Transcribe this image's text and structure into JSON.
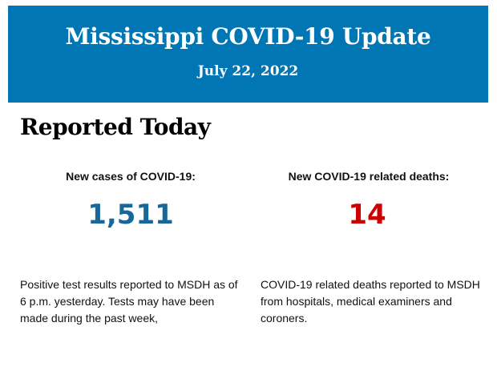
{
  "header": {
    "title": "Mississippi COVID-19 Update",
    "date": "July 22, 2022",
    "background_color": "#0076b4"
  },
  "section_title": "Reported Today",
  "stats": [
    {
      "label": "New cases of COVID-19:",
      "value": "1,511",
      "color": "#176899",
      "description": "Positive test results reported to MSDH as of 6 p.m. yesterday. Tests may have been made during the past week,"
    },
    {
      "label": "New COVID-19 related deaths:",
      "value": "14",
      "color": "#cc0000",
      "description": "COVID-19 related deaths reported to MSDH from hospitals, medical examiners and coroners."
    }
  ]
}
